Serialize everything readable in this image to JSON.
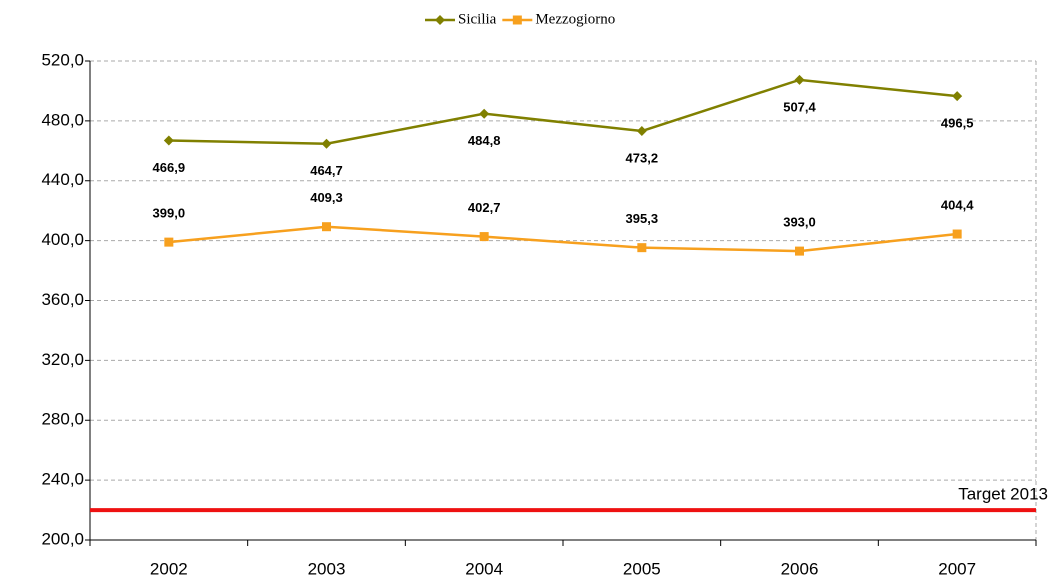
{
  "chart_data": {
    "type": "line",
    "categories": [
      "2002",
      "2003",
      "2004",
      "2005",
      "2006",
      "2007"
    ],
    "series": [
      {
        "name": "Sicilia",
        "color": "#808000",
        "marker": "diamond",
        "values": [
          466.9,
          464.7,
          484.8,
          473.2,
          507.4,
          496.5
        ],
        "value_labels": [
          "466,9",
          "464,7",
          "484,8",
          "473,2",
          "507,4",
          "496,5"
        ]
      },
      {
        "name": "Mezzogiorno",
        "color": "#f7a01e",
        "marker": "square",
        "values": [
          399.0,
          409.3,
          402.7,
          395.3,
          393.0,
          404.4
        ],
        "value_labels": [
          "399,0",
          "409,3",
          "402,7",
          "395,3",
          "393,0",
          "404,4"
        ]
      }
    ],
    "target": {
      "value": 220,
      "label": "Target 2013",
      "color": "#ee1111"
    },
    "ylim": [
      200,
      520
    ],
    "yticks": [
      {
        "value": 200,
        "label": "200,0"
      },
      {
        "value": 240,
        "label": "240,0"
      },
      {
        "value": 280,
        "label": "280,0"
      },
      {
        "value": 320,
        "label": "320,0"
      },
      {
        "value": 360,
        "label": "360,0"
      },
      {
        "value": 400,
        "label": "400,0"
      },
      {
        "value": 440,
        "label": "440,0"
      },
      {
        "value": 480,
        "label": "480,0"
      },
      {
        "value": 520,
        "label": "520,0"
      }
    ],
    "grid": true,
    "legend": "top"
  }
}
